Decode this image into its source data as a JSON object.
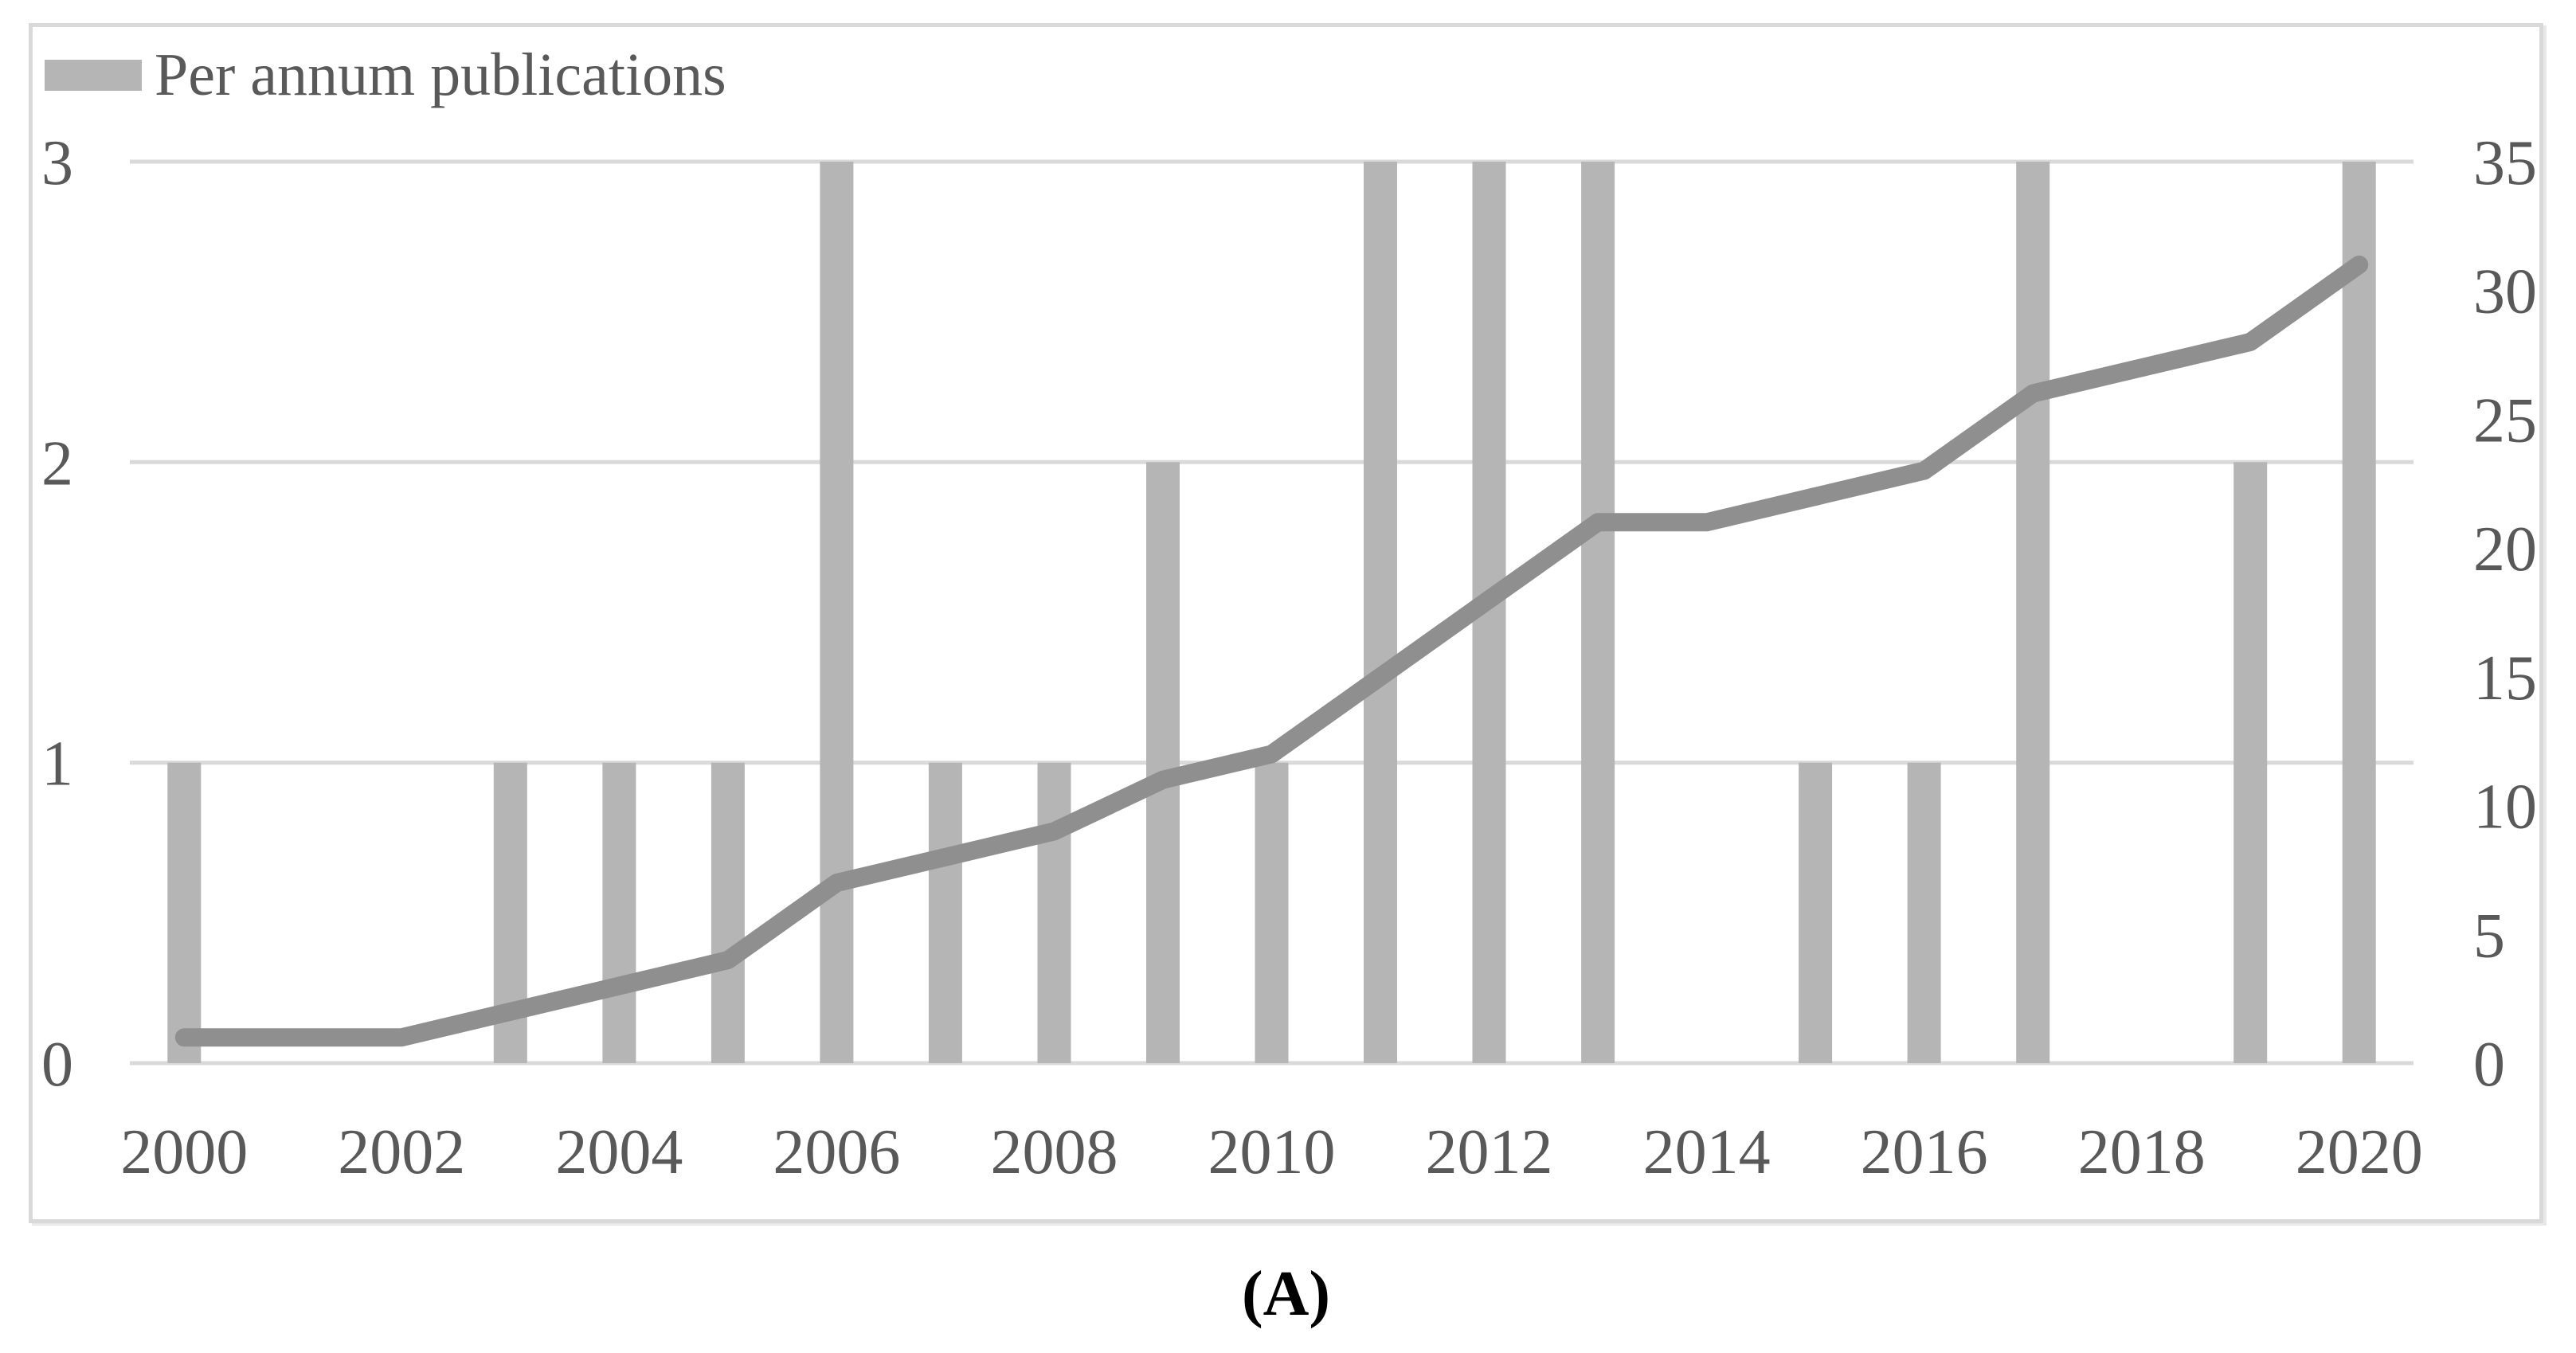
{
  "figure": {
    "caption": "(A)"
  },
  "legend": {
    "label": "Per annum publications",
    "swatch_color": "#b5b5b5"
  },
  "colors": {
    "background": "#ffffff",
    "frame_border": "#d9d9d9",
    "bar": "#b5b5b5",
    "line": "#8f8f8f",
    "gridline": "#d9d9d9",
    "axis_text": "#595959",
    "caption_text": "#000000"
  },
  "chart_data": {
    "type": "bar",
    "subtype": "combo-bar-line",
    "title": "",
    "xlabel": "",
    "ylabel": "",
    "grid": "horizontal",
    "legend_position": "top-left",
    "categories": [
      "2000",
      "2001",
      "2002",
      "2003",
      "2004",
      "2005",
      "2006",
      "2007",
      "2008",
      "2009",
      "2010",
      "2011",
      "2012",
      "2013",
      "2014",
      "2015",
      "2016",
      "2017",
      "2018",
      "2019",
      "2020"
    ],
    "series": [
      {
        "name": "Per annum publications",
        "type": "bar",
        "axis": "left",
        "values": [
          1,
          0,
          0,
          1,
          1,
          1,
          3,
          1,
          1,
          2,
          1,
          3,
          3,
          3,
          0,
          1,
          1,
          3,
          0,
          2,
          3
        ]
      },
      {
        "name": "",
        "type": "line",
        "axis": "right",
        "values": [
          1,
          1,
          1,
          2,
          3,
          4,
          7,
          8,
          9,
          11,
          12,
          15,
          18,
          21,
          21,
          22,
          23,
          26,
          27,
          28,
          31
        ]
      }
    ],
    "left_axis": {
      "min": 0,
      "max": 3,
      "ticks": [
        0,
        1,
        2,
        3
      ]
    },
    "right_axis": {
      "min": 0,
      "max": 35,
      "ticks": [
        0,
        5,
        10,
        15,
        20,
        25,
        30,
        35
      ]
    },
    "x_axis": {
      "label_every": 2,
      "labels_shown": [
        "2000",
        "2002",
        "2004",
        "2006",
        "2008",
        "2010",
        "2012",
        "2014",
        "2016",
        "2018",
        "2020"
      ]
    }
  }
}
